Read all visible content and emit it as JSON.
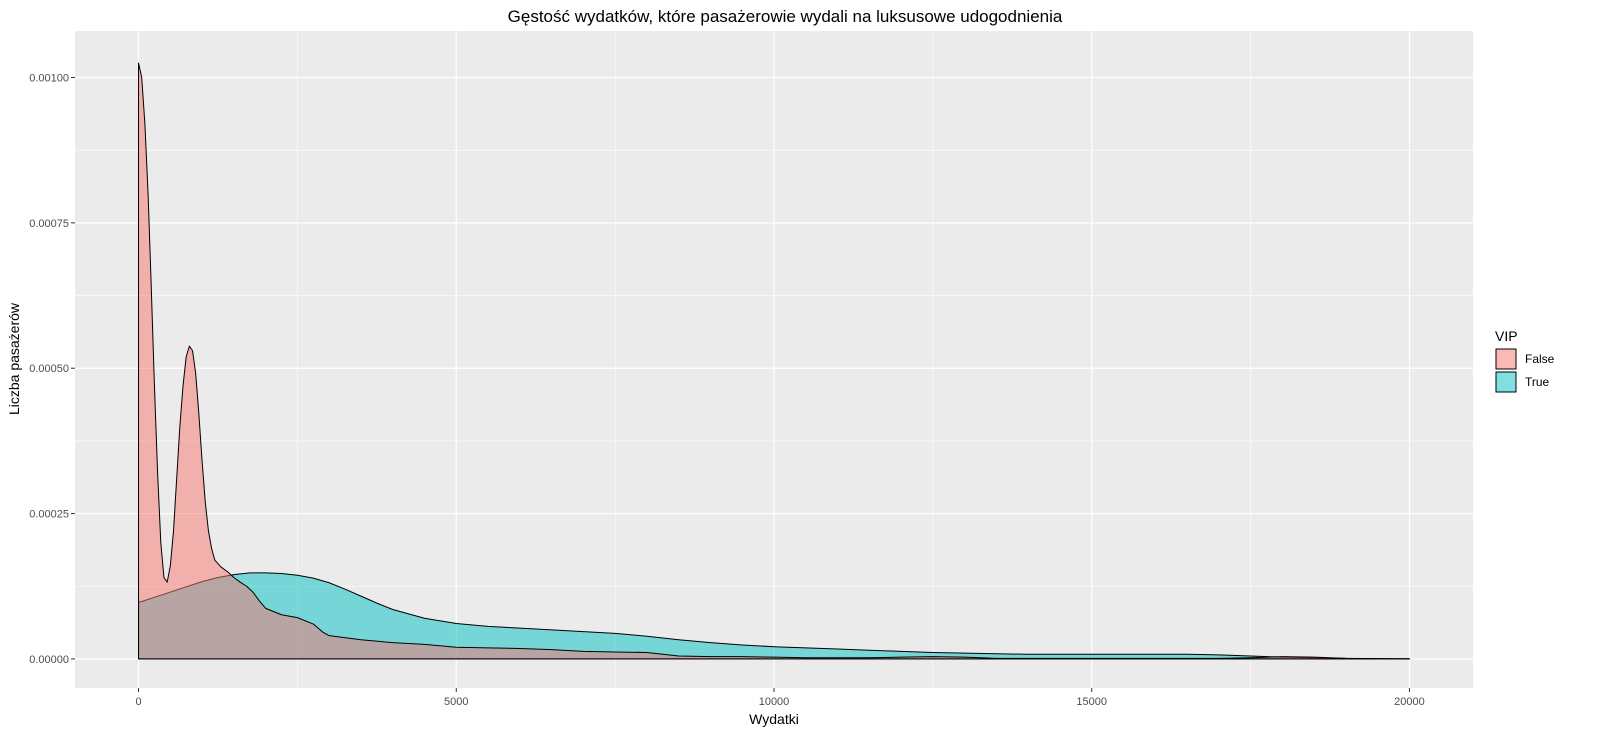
{
  "chart_data": {
    "type": "area",
    "subtype": "density",
    "title": "Gęstość wydatków, które pasażerowie wydali na luksusowe udogodnienia",
    "xlabel": "Wydatki",
    "ylabel": "Liczba pasażerów",
    "xlim": [
      -1000,
      21000
    ],
    "ylim": [
      -5e-05,
      0.00108
    ],
    "x_ticks": [
      0,
      5000,
      10000,
      15000,
      20000
    ],
    "x_tick_labels": [
      "0",
      "5000",
      "10000",
      "15000",
      "20000"
    ],
    "y_ticks": [
      0,
      0.00025,
      0.0005,
      0.00075,
      0.001
    ],
    "y_tick_labels": [
      "0.00000",
      "0.00025",
      "0.00050",
      "0.00075",
      "0.00100"
    ],
    "grid": true,
    "background": "#ebebeb",
    "legend": {
      "title": "VIP",
      "position": "right"
    },
    "series": [
      {
        "name": "True",
        "color": "#00BFC4",
        "points": [
          [
            0,
            9.7e-05
          ],
          [
            250,
            0.000106
          ],
          [
            500,
            0.000115
          ],
          [
            750,
            0.000124
          ],
          [
            1000,
            0.000133
          ],
          [
            1250,
            0.00014
          ],
          [
            1500,
            0.000145
          ],
          [
            1750,
            0.000148
          ],
          [
            2000,
            0.000148
          ],
          [
            2250,
            0.000147
          ],
          [
            2500,
            0.000144
          ],
          [
            2750,
            0.000139
          ],
          [
            3000,
            0.000131
          ],
          [
            3250,
            0.00012
          ],
          [
            3500,
            0.000108
          ],
          [
            3750,
            9.6e-05
          ],
          [
            4000,
            8.5e-05
          ],
          [
            4500,
            7e-05
          ],
          [
            5000,
            6.1e-05
          ],
          [
            5500,
            5.6e-05
          ],
          [
            6000,
            5.3e-05
          ],
          [
            6500,
            5e-05
          ],
          [
            7000,
            4.7e-05
          ],
          [
            7500,
            4.4e-05
          ],
          [
            8000,
            3.9e-05
          ],
          [
            8500,
            3.3e-05
          ],
          [
            9000,
            2.8e-05
          ],
          [
            9500,
            2.4e-05
          ],
          [
            10000,
            2.1e-05
          ],
          [
            10500,
            1.9e-05
          ],
          [
            11000,
            1.7e-05
          ],
          [
            11500,
            1.5e-05
          ],
          [
            12000,
            1.3e-05
          ],
          [
            12500,
            1.1e-05
          ],
          [
            13000,
            1e-05
          ],
          [
            13500,
            9e-06
          ],
          [
            14000,
            8e-06
          ],
          [
            14500,
            8e-06
          ],
          [
            15000,
            8e-06
          ],
          [
            15500,
            8e-06
          ],
          [
            16000,
            8e-06
          ],
          [
            16500,
            8e-06
          ],
          [
            17000,
            7e-06
          ],
          [
            17500,
            5e-06
          ],
          [
            18000,
            3e-06
          ],
          [
            18500,
            2e-06
          ],
          [
            19000,
            1e-06
          ],
          [
            19500,
            5e-07
          ],
          [
            20000,
            2e-07
          ]
        ]
      },
      {
        "name": "False",
        "color": "#F8766D",
        "points": [
          [
            0,
            0.001025
          ],
          [
            50,
            0.001
          ],
          [
            100,
            0.00092
          ],
          [
            150,
            0.0008
          ],
          [
            200,
            0.00064
          ],
          [
            250,
            0.00047
          ],
          [
            300,
            0.00032
          ],
          [
            350,
            0.0002
          ],
          [
            400,
            0.00014
          ],
          [
            450,
            0.000132
          ],
          [
            500,
            0.00016
          ],
          [
            550,
            0.00022
          ],
          [
            600,
            0.00031
          ],
          [
            650,
            0.0004
          ],
          [
            700,
            0.00047
          ],
          [
            750,
            0.00052
          ],
          [
            800,
            0.000538
          ],
          [
            850,
            0.00053
          ],
          [
            900,
            0.00049
          ],
          [
            950,
            0.00042
          ],
          [
            1000,
            0.00034
          ],
          [
            1050,
            0.00027
          ],
          [
            1100,
            0.00022
          ],
          [
            1150,
            0.00019
          ],
          [
            1200,
            0.00017
          ],
          [
            1300,
            0.000158
          ],
          [
            1400,
            0.00015
          ],
          [
            1500,
            0.00014
          ],
          [
            1600,
            0.000132
          ],
          [
            1700,
            0.000125
          ],
          [
            1800,
            0.000115
          ],
          [
            1900,
            0.0001
          ],
          [
            2000,
            8.7e-05
          ],
          [
            2250,
            7.6e-05
          ],
          [
            2500,
            7.1e-05
          ],
          [
            2750,
            6e-05
          ],
          [
            2900,
            4.6e-05
          ],
          [
            3000,
            4e-05
          ],
          [
            3500,
            3.3e-05
          ],
          [
            4000,
            2.8e-05
          ],
          [
            4500,
            2.5e-05
          ],
          [
            5000,
            2e-05
          ],
          [
            5500,
            1.9e-05
          ],
          [
            6000,
            1.8e-05
          ],
          [
            6500,
            1.6e-05
          ],
          [
            7000,
            1.3e-05
          ],
          [
            7500,
            1.2e-05
          ],
          [
            8000,
            1.1e-05
          ],
          [
            8250,
            8e-06
          ],
          [
            8500,
            5e-06
          ],
          [
            9000,
            4e-06
          ],
          [
            9500,
            4e-06
          ],
          [
            10000,
            3e-06
          ],
          [
            10500,
            2e-06
          ],
          [
            11000,
            2e-06
          ],
          [
            11500,
            2e-06
          ],
          [
            12000,
            3e-06
          ],
          [
            12500,
            4e-06
          ],
          [
            13000,
            3e-06
          ],
          [
            13500,
            1e-06
          ],
          [
            14000,
            1e-06
          ],
          [
            14500,
            1e-06
          ],
          [
            15000,
            1e-06
          ],
          [
            15500,
            1e-06
          ],
          [
            16000,
            1e-06
          ],
          [
            16500,
            1e-06
          ],
          [
            17000,
            1e-06
          ],
          [
            17500,
            2e-06
          ],
          [
            18000,
            4e-06
          ],
          [
            18500,
            3e-06
          ],
          [
            19000,
            1e-06
          ],
          [
            19500,
            5e-07
          ],
          [
            20000,
            2e-07
          ]
        ]
      }
    ],
    "legend_order": [
      "False",
      "True"
    ]
  }
}
